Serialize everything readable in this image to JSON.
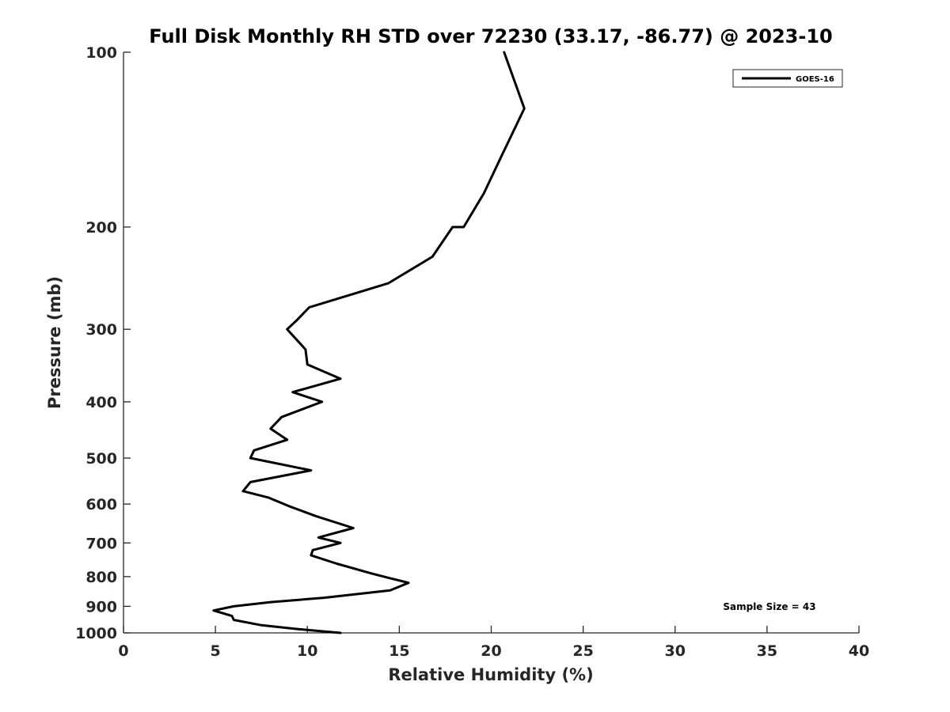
{
  "chart_data": {
    "type": "line",
    "title": "Full Disk Monthly RH STD over 72230 (33.17, -86.77) @ 2023-10",
    "xlabel": "Relative Humidity (%)",
    "ylabel": "Pressure (mb)",
    "xlim": [
      0,
      40
    ],
    "ylim": [
      100,
      1000
    ],
    "y_scale": "log",
    "y_reversed": true,
    "x_ticks": [
      0,
      5,
      10,
      15,
      20,
      25,
      30,
      35,
      40
    ],
    "x_tick_labels": [
      "0",
      "5",
      "10",
      "15",
      "20",
      "25",
      "30",
      "35",
      "40"
    ],
    "y_ticks": [
      100,
      200,
      300,
      400,
      500,
      600,
      700,
      800,
      900,
      1000
    ],
    "y_tick_labels": [
      "100",
      "200",
      "300",
      "400",
      "500",
      "600",
      "700",
      "800",
      "900",
      "1000"
    ],
    "grid": false,
    "legend": {
      "position": "top-right",
      "entries": [
        "GOES-16"
      ]
    },
    "annotation": "Sample Size = 43",
    "series": [
      {
        "name": "GOES-16",
        "color": "#000000",
        "points": [
          [
            20.7,
            100
          ],
          [
            21.8,
            125
          ],
          [
            20.6,
            150
          ],
          [
            19.6,
            175
          ],
          [
            18.5,
            200
          ],
          [
            17.9,
            200
          ],
          [
            16.8,
            225
          ],
          [
            14.4,
            250
          ],
          [
            10.1,
            275
          ],
          [
            9.4,
            290
          ],
          [
            8.9,
            300
          ],
          [
            9.9,
            325
          ],
          [
            10.0,
            345
          ],
          [
            11.8,
            365
          ],
          [
            9.2,
            385
          ],
          [
            10.8,
            400
          ],
          [
            8.6,
            425
          ],
          [
            8.0,
            445
          ],
          [
            8.9,
            465
          ],
          [
            7.1,
            485
          ],
          [
            6.9,
            500
          ],
          [
            10.2,
            525
          ],
          [
            6.9,
            550
          ],
          [
            6.5,
            570
          ],
          [
            7.9,
            585
          ],
          [
            9.0,
            605
          ],
          [
            10.5,
            630
          ],
          [
            12.5,
            660
          ],
          [
            10.6,
            685
          ],
          [
            11.8,
            700
          ],
          [
            10.3,
            720
          ],
          [
            10.2,
            735
          ],
          [
            11.6,
            760
          ],
          [
            13.5,
            790
          ],
          [
            14.5,
            805
          ],
          [
            15.5,
            820
          ],
          [
            14.5,
            845
          ],
          [
            10.9,
            870
          ],
          [
            8.0,
            885
          ],
          [
            6.0,
            900
          ],
          [
            4.9,
            915
          ],
          [
            5.9,
            935
          ],
          [
            6.0,
            950
          ],
          [
            7.5,
            970
          ],
          [
            9.5,
            985
          ],
          [
            11.8,
            1000
          ]
        ]
      }
    ]
  }
}
